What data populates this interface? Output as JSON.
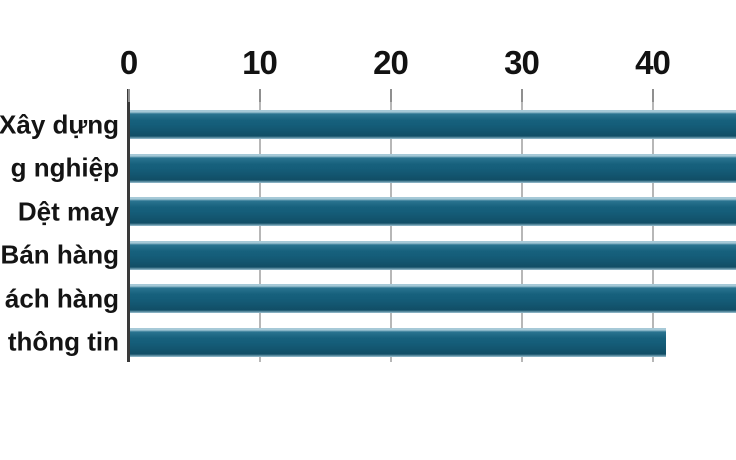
{
  "chart_data": {
    "type": "bar",
    "orientation": "horizontal",
    "title": "",
    "categories": [
      "Xây dựng",
      "g nghiệp",
      "Dệt may",
      "Bán hàng",
      "ách hàng",
      "thông tin"
    ],
    "values": [
      null,
      null,
      null,
      null,
      null,
      41
    ],
    "clipped": [
      true,
      true,
      true,
      true,
      true,
      false
    ],
    "note": "Image is cropped: category labels are cut at the left edge and the top five bars run past the right edge of the image (beyond ~46 on the axis); the bottom bar ends at ~41.",
    "xticks": [
      0,
      10,
      20,
      30,
      40
    ],
    "xlim_visible": [
      0,
      46.4
    ],
    "gridlines": "vertical light-gray lines at each major tick",
    "legend": "none",
    "colors": {
      "bar": "#155e7a",
      "axis_line": "#3a3a3a",
      "gridline": "#b7b7b7",
      "tick_mark": "#8f8f8f",
      "text": "#121212",
      "background": "#ffffff"
    }
  }
}
